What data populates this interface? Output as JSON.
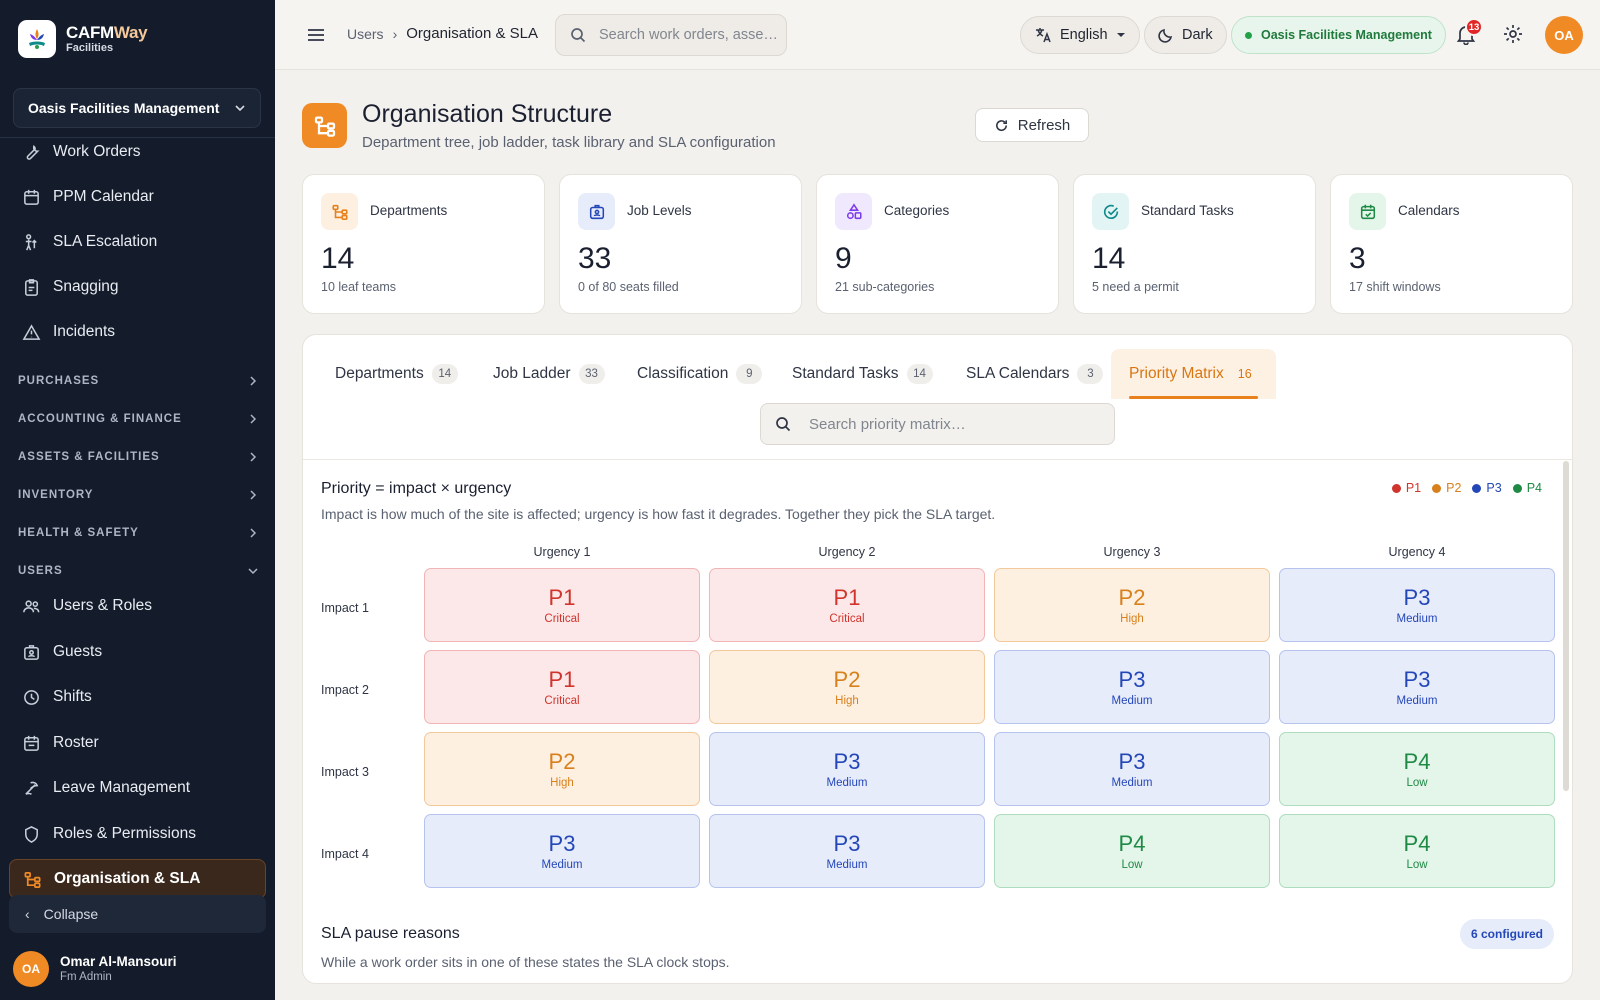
{
  "brand": {
    "name_main": "CAFM",
    "name_accent": "Way",
    "sub": "Facilities"
  },
  "sidebar": {
    "org_selector": "Oasis Facilities Management",
    "items": [
      {
        "label": "Work Orders",
        "icon": "wrench-icon"
      },
      {
        "label": "PPM Calendar",
        "icon": "calendar-icon"
      },
      {
        "label": "SLA Escalation",
        "icon": "escalation-icon"
      },
      {
        "label": "Snagging",
        "icon": "clipboard-icon"
      },
      {
        "label": "Incidents",
        "icon": "warning-icon"
      }
    ],
    "sections": [
      {
        "label": "PURCHASES",
        "expanded": false
      },
      {
        "label": "ACCOUNTING & FINANCE",
        "expanded": false
      },
      {
        "label": "ASSETS & FACILITIES",
        "expanded": false
      },
      {
        "label": "INVENTORY",
        "expanded": false
      },
      {
        "label": "HEALTH & SAFETY",
        "expanded": false
      },
      {
        "label": "USERS",
        "expanded": true
      }
    ],
    "user_items": [
      {
        "label": "Users & Roles",
        "icon": "users-icon"
      },
      {
        "label": "Guests",
        "icon": "badge-icon"
      },
      {
        "label": "Shifts",
        "icon": "clock-icon"
      },
      {
        "label": "Roster",
        "icon": "roster-icon"
      },
      {
        "label": "Leave Management",
        "icon": "leave-icon"
      },
      {
        "label": "Roles & Permissions",
        "icon": "shield-icon"
      },
      {
        "label": "Organisation & SLA",
        "icon": "org-tree-icon",
        "active": true
      }
    ],
    "collapse_label": "Collapse",
    "user": {
      "initials": "OA",
      "name": "Omar Al-Mansouri",
      "role": "Fm Admin"
    }
  },
  "topbar": {
    "breadcrumb": [
      "Users",
      "Organisation & SLA"
    ],
    "search_placeholder": "Search work orders, asse…",
    "language": "English",
    "theme": "Dark",
    "org": "Oasis Facilities Management",
    "notifications": "13",
    "avatar": "OA"
  },
  "page": {
    "title": "Organisation Structure",
    "subtitle": "Department tree, job ladder, task library and SLA configuration",
    "refresh_label": "Refresh"
  },
  "stats": [
    {
      "label": "Departments",
      "value": "14",
      "hint": "10 leaf teams",
      "icon": "org-tree-icon",
      "color": "#e8801c",
      "bg": "#fdf0e1"
    },
    {
      "label": "Job Levels",
      "value": "33",
      "hint": "0 of 80 seats filled",
      "icon": "badge-icon",
      "color": "#2447b8",
      "bg": "#e7ecfb"
    },
    {
      "label": "Categories",
      "value": "9",
      "hint": "21 sub-categories",
      "icon": "shapes-icon",
      "color": "#7c3aed",
      "bg": "#f0e9fd"
    },
    {
      "label": "Standard Tasks",
      "value": "14",
      "hint": "5 need a permit",
      "icon": "check-circle-icon",
      "color": "#0e8a8a",
      "bg": "#e3f4f4"
    },
    {
      "label": "Calendars",
      "value": "3",
      "hint": "17 shift windows",
      "icon": "calendar-check-icon",
      "color": "#1f8a45",
      "bg": "#e4f5ea"
    }
  ],
  "tabs": [
    {
      "label": "Departments",
      "count": "14"
    },
    {
      "label": "Job Ladder",
      "count": "33"
    },
    {
      "label": "Classification",
      "count": "9"
    },
    {
      "label": "Standard Tasks",
      "count": "14"
    },
    {
      "label": "SLA Calendars",
      "count": "3"
    },
    {
      "label": "Priority Matrix",
      "count": "16",
      "active": true
    }
  ],
  "panel_search_placeholder": "Search priority matrix…",
  "matrix": {
    "title": "Priority = impact × urgency",
    "description": "Impact is how much of the site is affected; urgency is how fast it degrades. Together they pick the SLA target.",
    "legend": [
      {
        "label": "P1",
        "color": "#d0342c"
      },
      {
        "label": "P2",
        "color": "#d8801c"
      },
      {
        "label": "P3",
        "color": "#2447b8"
      },
      {
        "label": "P4",
        "color": "#1f8a45"
      }
    ],
    "columns": [
      "Urgency 1",
      "Urgency 2",
      "Urgency 3",
      "Urgency 4"
    ],
    "rows": [
      {
        "label": "Impact 1",
        "cells": [
          {
            "code": "P1",
            "label": "Critical"
          },
          {
            "code": "P1",
            "label": "Critical"
          },
          {
            "code": "P2",
            "label": "High"
          },
          {
            "code": "P3",
            "label": "Medium"
          }
        ]
      },
      {
        "label": "Impact 2",
        "cells": [
          {
            "code": "P1",
            "label": "Critical"
          },
          {
            "code": "P2",
            "label": "High"
          },
          {
            "code": "P3",
            "label": "Medium"
          },
          {
            "code": "P3",
            "label": "Medium"
          }
        ]
      },
      {
        "label": "Impact 3",
        "cells": [
          {
            "code": "P2",
            "label": "High"
          },
          {
            "code": "P3",
            "label": "Medium"
          },
          {
            "code": "P3",
            "label": "Medium"
          },
          {
            "code": "P4",
            "label": "Low"
          }
        ]
      },
      {
        "label": "Impact 4",
        "cells": [
          {
            "code": "P3",
            "label": "Medium"
          },
          {
            "code": "P3",
            "label": "Medium"
          },
          {
            "code": "P4",
            "label": "Low"
          },
          {
            "code": "P4",
            "label": "Low"
          }
        ]
      }
    ]
  },
  "pause": {
    "title": "SLA pause reasons",
    "description": "While a work order sits in one of these states the SLA clock stops.",
    "badge": "6 configured"
  }
}
